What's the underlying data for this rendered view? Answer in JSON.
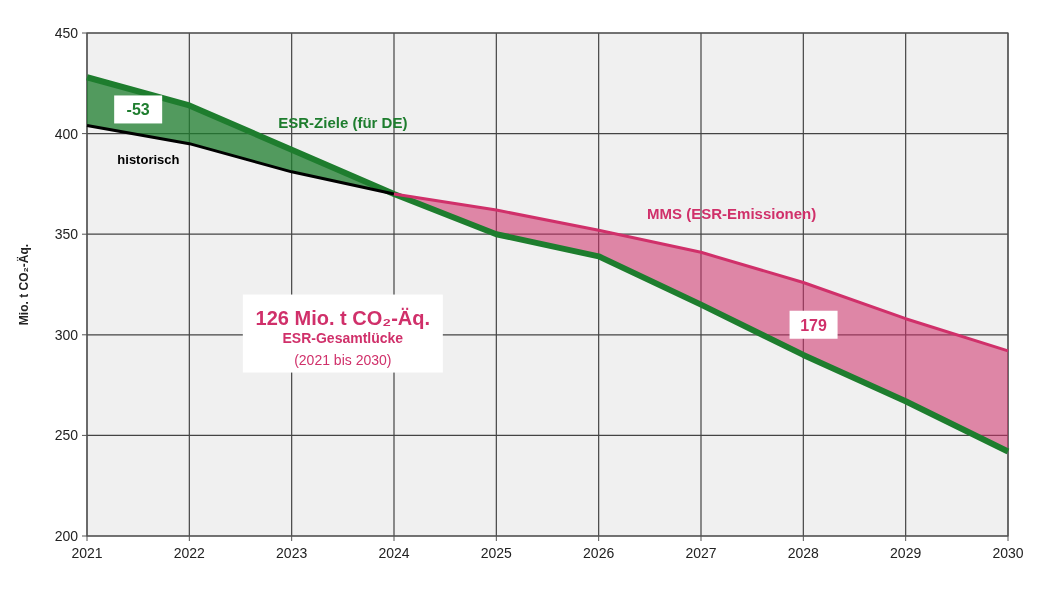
{
  "chart_data": {
    "type": "line",
    "ylabel": "Mio. t CO₂-Äq.",
    "x": [
      2021,
      2022,
      2023,
      2024,
      2025,
      2026,
      2027,
      2028,
      2029,
      2030
    ],
    "xlim": [
      2021,
      2030
    ],
    "xticks": [
      2021,
      2022,
      2023,
      2024,
      2025,
      2026,
      2027,
      2028,
      2029,
      2030
    ],
    "ylim": [
      200,
      450
    ],
    "yticks": [
      200,
      250,
      300,
      350,
      400,
      450
    ],
    "grid": true,
    "series": [
      {
        "name": "ESR-Ziele (für DE)",
        "color": "#1e7d2e",
        "values": [
          428,
          414,
          392,
          370,
          350,
          339,
          315,
          290,
          267,
          242
        ],
        "lower": [
          404,
          395,
          381,
          370,
          null,
          null,
          null,
          null,
          null,
          null
        ],
        "upper": [
          428,
          414,
          392,
          370,
          null,
          null,
          null,
          null,
          null,
          null
        ]
      },
      {
        "name": "historisch",
        "color": "#000000",
        "x": [
          2021,
          2022,
          2023,
          2024
        ],
        "values": [
          404,
          395,
          381,
          370
        ]
      },
      {
        "name": "MMS (ESR-Emissionen)",
        "color": "#d0306a",
        "x": [
          2024,
          2025,
          2026,
          2027,
          2028,
          2029,
          2030
        ],
        "values": [
          370,
          362,
          352,
          341,
          326,
          308,
          292
        ],
        "lower": [
          370,
          350,
          339,
          315,
          290,
          267,
          242
        ],
        "upper": [
          370,
          362,
          352,
          341,
          326,
          308,
          292
        ]
      }
    ],
    "annotations": [
      "-53",
      "179",
      "126 Mio. t CO₂-Äq.",
      "ESR-Gesamtlücke",
      "(2021 bis 2030)"
    ]
  }
}
